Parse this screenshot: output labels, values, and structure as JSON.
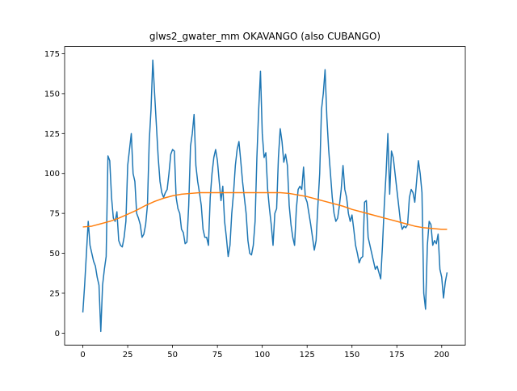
{
  "chart_data": {
    "type": "line",
    "title": "glws2_gwater_mm OKAVANGO (also CUBANGO)",
    "xlim": [
      -10.15,
      213.15
    ],
    "xticks": [
      0,
      25,
      50,
      75,
      100,
      125,
      150,
      175,
      200
    ],
    "ylim": [
      -7.5,
      179.5
    ],
    "yticks": [
      0,
      25,
      50,
      75,
      100,
      125,
      150,
      175
    ],
    "series": [
      {
        "color": "#1f77b4",
        "x": [
          0,
          1,
          2,
          3,
          4,
          5,
          6,
          7,
          8,
          9,
          10,
          11,
          12,
          13,
          14,
          15,
          16,
          17,
          18,
          19,
          20,
          21,
          22,
          23,
          24,
          25,
          26,
          27,
          28,
          29,
          30,
          31,
          32,
          33,
          34,
          35,
          36,
          37,
          38,
          39,
          40,
          41,
          42,
          43,
          44,
          45,
          46,
          47,
          48,
          49,
          50,
          51,
          52,
          53,
          54,
          55,
          56,
          57,
          58,
          59,
          60,
          61,
          62,
          63,
          64,
          65,
          66,
          67,
          68,
          69,
          70,
          71,
          72,
          73,
          74,
          75,
          76,
          77,
          78,
          79,
          80,
          81,
          82,
          83,
          84,
          85,
          86,
          87,
          88,
          89,
          90,
          91,
          92,
          93,
          94,
          95,
          96,
          97,
          98,
          99,
          100,
          101,
          102,
          103,
          104,
          105,
          106,
          107,
          108,
          109,
          110,
          111,
          112,
          113,
          114,
          115,
          116,
          117,
          118,
          119,
          120,
          121,
          122,
          123,
          124,
          125,
          126,
          127,
          128,
          129,
          130,
          131,
          132,
          133,
          134,
          135,
          136,
          137,
          138,
          139,
          140,
          141,
          142,
          143,
          144,
          145,
          146,
          147,
          148,
          149,
          150,
          151,
          152,
          153,
          154,
          155,
          156,
          157,
          158,
          159,
          160,
          161,
          162,
          163,
          164,
          165,
          166,
          167,
          168,
          169,
          170,
          171,
          172,
          173,
          174,
          175,
          176,
          177,
          178,
          179,
          180,
          181,
          182,
          183,
          184,
          185,
          186,
          187,
          188,
          189,
          190,
          191,
          192,
          193,
          194,
          195,
          196,
          197,
          198,
          199,
          200,
          201,
          202,
          203
        ],
        "values": [
          13,
          30,
          50,
          70,
          55,
          50,
          45,
          42,
          35,
          30,
          1,
          30,
          40,
          48,
          111,
          108,
          85,
          72,
          70,
          76,
          58,
          55,
          54,
          60,
          70,
          105,
          115,
          125,
          100,
          95,
          75,
          72,
          68,
          60,
          62,
          68,
          80,
          120,
          140,
          171,
          150,
          130,
          110,
          95,
          88,
          85,
          88,
          90,
          100,
          112,
          115,
          114,
          85,
          78,
          75,
          65,
          63,
          56,
          57,
          80,
          117,
          125,
          137,
          105,
          95,
          88,
          80,
          65,
          60,
          60,
          55,
          85,
          100,
          110,
          115,
          108,
          95,
          83,
          92,
          70,
          60,
          48,
          55,
          75,
          88,
          105,
          115,
          120,
          108,
          95,
          85,
          75,
          58,
          50,
          49,
          55,
          70,
          110,
          140,
          164,
          125,
          110,
          113,
          90,
          78,
          68,
          55,
          75,
          78,
          110,
          128,
          120,
          107,
          112,
          105,
          80,
          68,
          60,
          55,
          78,
          90,
          92,
          90,
          104,
          85,
          82,
          75,
          68,
          60,
          52,
          58,
          80,
          100,
          140,
          150,
          165,
          135,
          115,
          100,
          85,
          75,
          70,
          72,
          80,
          90,
          105,
          90,
          85,
          75,
          70,
          74,
          65,
          55,
          50,
          44,
          47,
          48,
          82,
          83,
          60,
          55,
          50,
          45,
          40,
          42,
          38,
          34,
          55,
          80,
          100,
          125,
          87,
          114,
          110,
          100,
          90,
          80,
          70,
          65,
          67,
          66,
          68,
          85,
          90,
          88,
          82,
          95,
          108,
          100,
          88,
          25,
          15,
          55,
          70,
          68,
          55,
          58,
          56,
          62,
          40,
          35,
          22,
          32,
          38
        ]
      },
      {
        "color": "#ff7f0e",
        "x": [
          0,
          5,
          10,
          15,
          20,
          25,
          30,
          35,
          40,
          45,
          50,
          55,
          60,
          65,
          70,
          75,
          80,
          85,
          90,
          95,
          100,
          105,
          110,
          115,
          120,
          125,
          130,
          135,
          140,
          145,
          150,
          155,
          160,
          165,
          170,
          175,
          180,
          185,
          190,
          195,
          200,
          203
        ],
        "values": [
          66.5,
          67,
          68.5,
          70,
          72,
          74.5,
          77,
          80,
          82.5,
          84.5,
          86,
          87,
          87.5,
          88,
          88,
          88,
          88,
          88,
          88,
          88,
          88,
          88,
          88,
          87.5,
          86.5,
          85.5,
          84,
          82.5,
          81,
          79.5,
          77.5,
          76,
          74.5,
          73,
          71.5,
          70,
          68.5,
          67,
          66,
          65.5,
          65,
          65
        ]
      }
    ]
  }
}
